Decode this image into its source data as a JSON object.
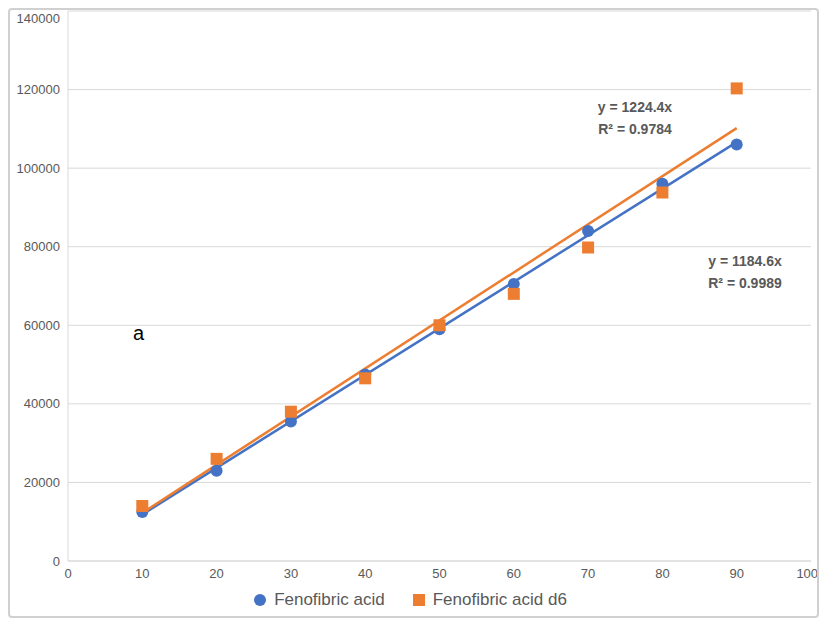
{
  "chart_data": {
    "type": "scatter",
    "annotations": [
      "a"
    ],
    "xlim": [
      0,
      100
    ],
    "xticks": [
      0,
      10,
      20,
      30,
      40,
      50,
      60,
      70,
      80,
      90,
      100
    ],
    "ylim": [
      0,
      140000
    ],
    "yticks": [
      0,
      20000,
      40000,
      60000,
      80000,
      100000,
      120000,
      140000
    ],
    "grid": true,
    "legend": "bottom",
    "series": [
      {
        "name": "Fenofibric acid",
        "color": "#4472c4",
        "marker": "circle",
        "x": [
          10,
          20,
          30,
          40,
          50,
          60,
          70,
          80,
          90
        ],
        "values": [
          12500,
          23000,
          35500,
          47500,
          59000,
          70500,
          84000,
          96000,
          106000
        ],
        "trendline": {
          "slope": 1184.6,
          "equation": "y = 1184.6x",
          "r_squared": "R² = 0.9989"
        }
      },
      {
        "name": "Fenofibric acid d6",
        "color": "#ed7d31",
        "marker": "square",
        "x": [
          10,
          20,
          30,
          40,
          50,
          60,
          70,
          80,
          90
        ],
        "values": [
          14000,
          26000,
          38000,
          46500,
          60000,
          68000,
          79800,
          93800,
          120300
        ],
        "trendline": {
          "slope": 1224.4,
          "equation": "y = 1224.4x",
          "r_squared": "R² = 0.9784"
        }
      }
    ]
  }
}
